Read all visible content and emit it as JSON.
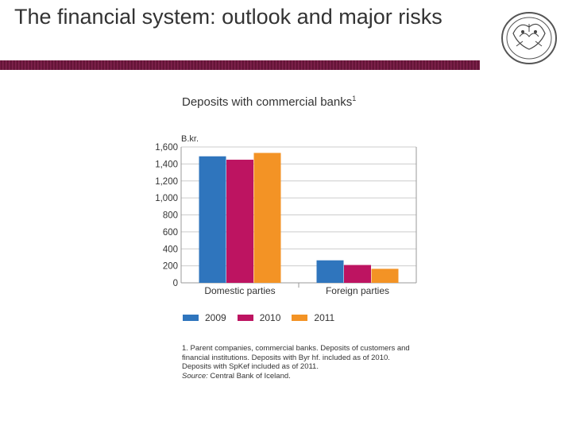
{
  "slide": {
    "title": "The financial system: outlook and major risks"
  },
  "colors": {
    "accent_bar": "#7d1f4a",
    "series_2009": "#2f75bd",
    "series_2010": "#bd1461",
    "series_2011": "#f39325"
  },
  "chart_data": {
    "type": "bar",
    "title": "Deposits with commercial banks",
    "title_superscript": "1",
    "unit_label": "B.kr.",
    "categories": [
      "Domestic parties",
      "Foreign parties"
    ],
    "series": [
      {
        "name": "2009",
        "values": [
          1490,
          265
        ]
      },
      {
        "name": "2010",
        "values": [
          1450,
          210
        ]
      },
      {
        "name": "2011",
        "values": [
          1530,
          165
        ]
      }
    ],
    "ylim": [
      0,
      1600
    ],
    "yticks": [
      "1,600",
      "1,400",
      "1,200",
      "1,000",
      "800",
      "600",
      "400",
      "200",
      "0"
    ],
    "grid": true,
    "legend_position": "bottom-left"
  },
  "footnote": {
    "lines": [
      "1. Parent companies, commercial banks. Deposits of customers and",
      "financial institutions. Deposits with Byr hf. included as of 2010.",
      "Deposits with SpKef included as of 2011."
    ],
    "source_label": "Source:",
    "source_text": " Central Bank of Iceland."
  }
}
